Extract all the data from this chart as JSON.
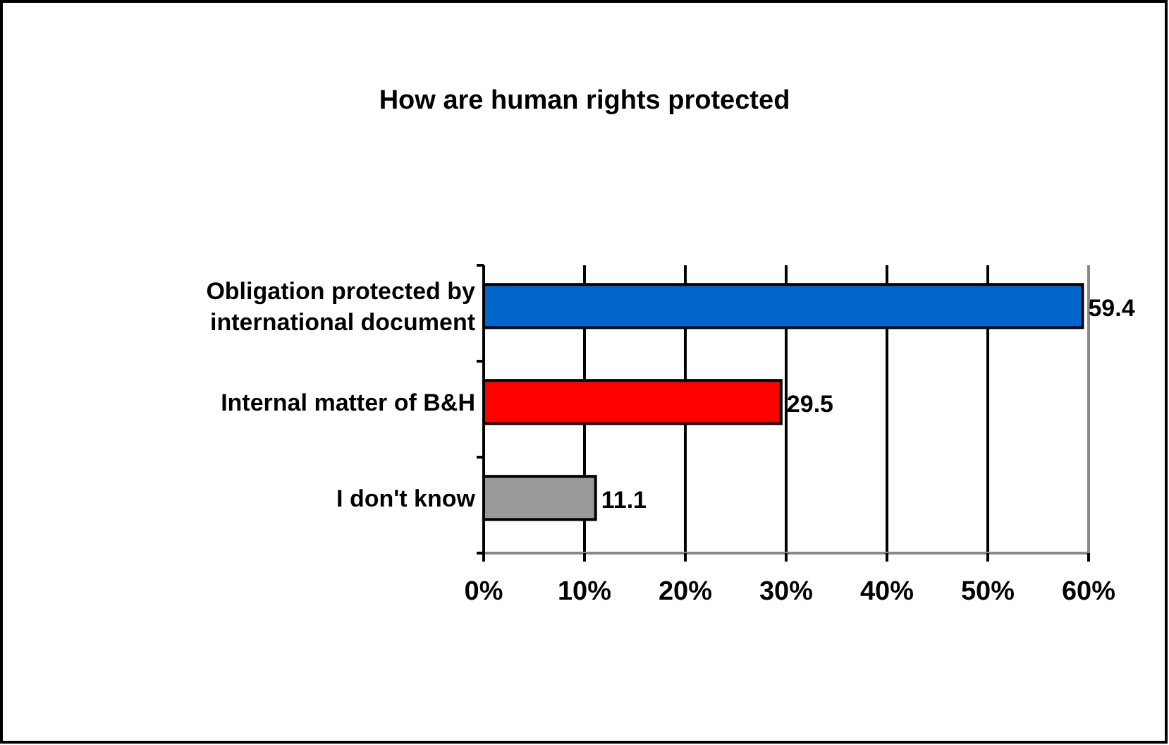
{
  "chart_data": {
    "type": "bar",
    "orientation": "horizontal",
    "title": "How are human rights protected",
    "categories": [
      "Obligation protected by international document",
      "Internal matter of B&H",
      "I don't know"
    ],
    "values": [
      59.4,
      29.5,
      11.1
    ],
    "colors": [
      "#0066cc",
      "#ff0000",
      "#999999"
    ],
    "xlim": [
      0,
      60
    ],
    "xticks": [
      {
        "value": 0,
        "label": "0%"
      },
      {
        "value": 10,
        "label": "10%"
      },
      {
        "value": 20,
        "label": "20%"
      },
      {
        "value": 30,
        "label": "30%"
      },
      {
        "value": 40,
        "label": "40%"
      },
      {
        "value": 50,
        "label": "50%"
      },
      {
        "value": 60,
        "label": "60%"
      }
    ],
    "grid": "x",
    "data_labels": true
  }
}
